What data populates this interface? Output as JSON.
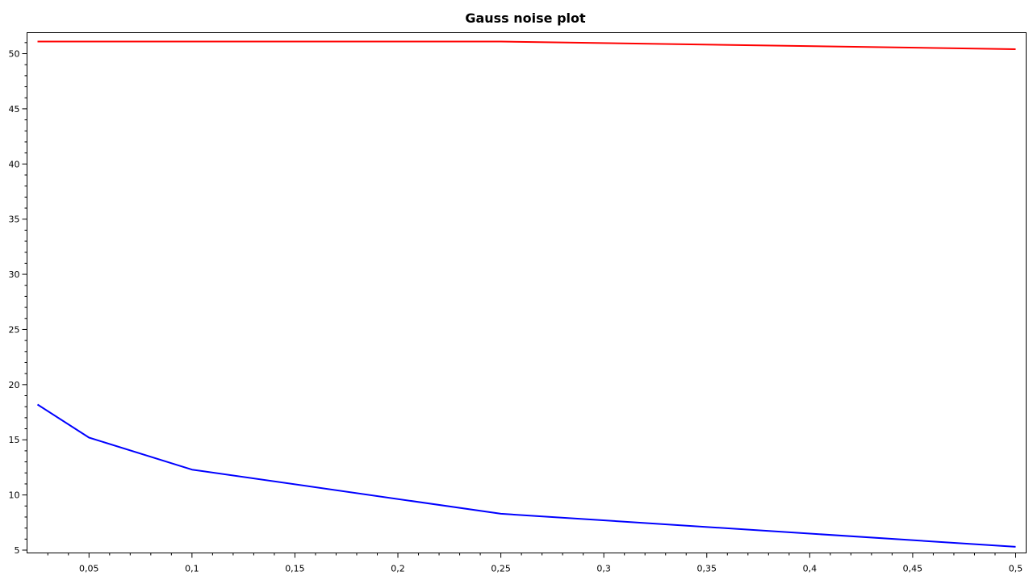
{
  "chart_data": {
    "type": "line",
    "title": "Gauss noise plot",
    "xlabel": "",
    "ylabel": "",
    "xlim": [
      0.025,
      0.5
    ],
    "ylim": [
      5,
      51.5
    ],
    "x_ticks": [
      0.05,
      0.1,
      0.15,
      0.2,
      0.25,
      0.3,
      0.35,
      0.4,
      0.45,
      0.5
    ],
    "x_tick_labels": [
      "0,05",
      "0,1",
      "0,15",
      "0,2",
      "0,25",
      "0,3",
      "0,35",
      "0,4",
      "0,45",
      "0,5"
    ],
    "y_ticks": [
      5,
      10,
      15,
      20,
      25,
      30,
      35,
      40,
      45,
      50
    ],
    "y_tick_labels": [
      "5",
      "10",
      "15",
      "20",
      "25",
      "30",
      "35",
      "40",
      "45",
      "50"
    ],
    "grid": false,
    "legend": "none",
    "series": [
      {
        "color": "#ff0000",
        "x": [
          0.025,
          0.075,
          0.25,
          0.5
        ],
        "y": [
          51.1,
          51.1,
          51.1,
          50.4
        ]
      },
      {
        "color": "#0000ff",
        "x": [
          0.025,
          0.05,
          0.1,
          0.25,
          0.5
        ],
        "y": [
          18.2,
          15.2,
          12.3,
          8.3,
          5.3
        ]
      }
    ]
  }
}
